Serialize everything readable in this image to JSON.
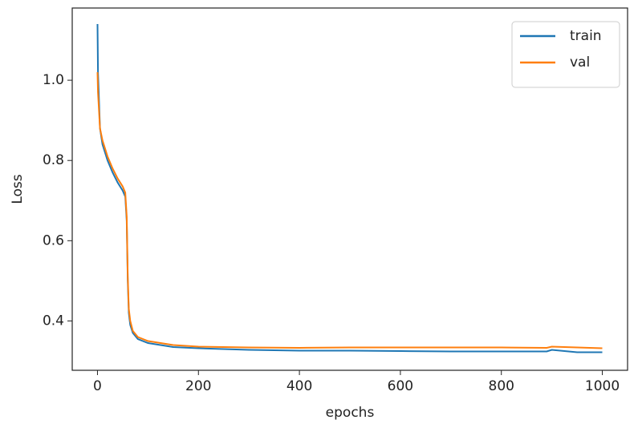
{
  "chart_data": {
    "type": "line",
    "xlabel": "epochs",
    "ylabel": "Loss",
    "x": [
      0,
      1,
      5,
      10,
      20,
      30,
      40,
      50,
      55,
      58,
      60,
      62,
      65,
      70,
      80,
      100,
      150,
      200,
      300,
      400,
      500,
      600,
      700,
      800,
      890,
      900,
      950,
      1000
    ],
    "series": [
      {
        "name": "train",
        "color": "#1f77b4",
        "values": [
          1.14,
          1.02,
          0.88,
          0.84,
          0.8,
          0.77,
          0.745,
          0.725,
          0.71,
          0.65,
          0.5,
          0.42,
          0.39,
          0.37,
          0.355,
          0.345,
          0.335,
          0.332,
          0.328,
          0.326,
          0.326,
          0.325,
          0.324,
          0.324,
          0.324,
          0.328,
          0.322,
          0.322
        ]
      },
      {
        "name": "val",
        "color": "#ff7f0e",
        "values": [
          1.02,
          0.97,
          0.88,
          0.85,
          0.81,
          0.78,
          0.755,
          0.735,
          0.72,
          0.66,
          0.51,
          0.43,
          0.4,
          0.375,
          0.36,
          0.35,
          0.34,
          0.336,
          0.334,
          0.333,
          0.334,
          0.334,
          0.334,
          0.334,
          0.333,
          0.336,
          0.334,
          0.332
        ]
      }
    ],
    "xlim": [
      -50,
      1050
    ],
    "xticks": [
      0,
      200,
      400,
      600,
      800,
      1000
    ],
    "ylim": [
      0.277,
      1.18
    ],
    "yticks": [
      0.4,
      0.6,
      0.8,
      {
        "value": 1,
        "label": "1.0"
      }
    ],
    "grid": false,
    "legend": "upper right"
  }
}
